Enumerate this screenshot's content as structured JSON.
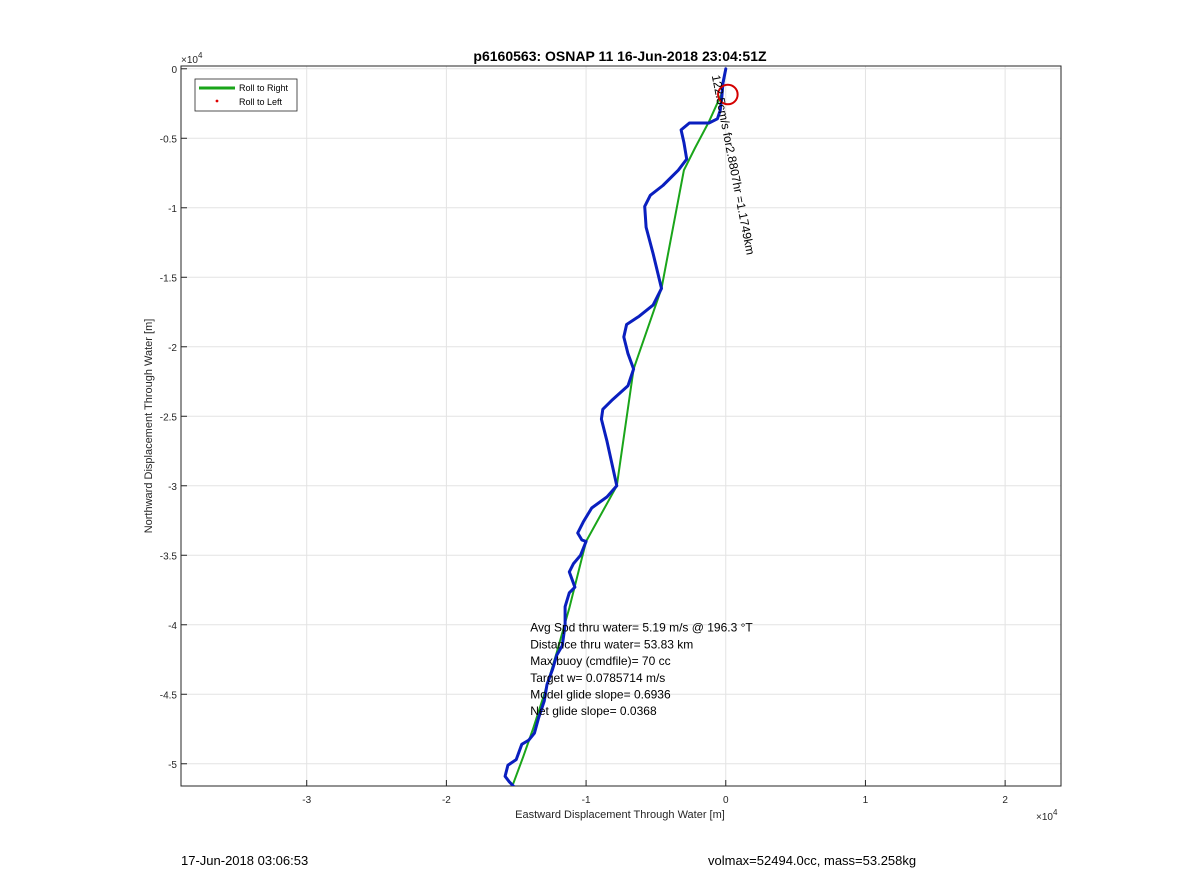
{
  "chart_data": {
    "type": "line",
    "title": "p6160563: OSNAP 11 16-Jun-2018 23:04:51Z",
    "xlabel": "Eastward Displacement Through Water [m]",
    "ylabel": "Northward Displacement Through Water [m]",
    "x_exponent_label": "×10",
    "x_exponent_power": "4",
    "y_exponent_label": "×10",
    "y_exponent_power": "4",
    "xlim": [
      -39000,
      24000
    ],
    "ylim": [
      -51600,
      200
    ],
    "x_ticks": [
      -30000,
      -20000,
      -10000,
      0,
      10000,
      20000
    ],
    "x_tick_labels": [
      "-3",
      "-2",
      "-1",
      "0",
      "1",
      "2"
    ],
    "y_ticks": [
      0,
      -5000,
      -10000,
      -15000,
      -20000,
      -25000,
      -30000,
      -35000,
      -40000,
      -45000,
      -50000
    ],
    "y_tick_labels": [
      "0",
      "-0.5",
      "-1",
      "-1.5",
      "-2",
      "-2.5",
      "-3",
      "-3.5",
      "-4",
      "-4.5",
      "-5"
    ],
    "grid": true,
    "legend_placement": "top-left",
    "legend": [
      {
        "label": "Roll to Right",
        "color": "#1aa51a",
        "style": "line"
      },
      {
        "label": "Roll to Left",
        "color": "#e00000",
        "style": "dot"
      }
    ],
    "series": [
      {
        "name": "Roll to Right",
        "color": "#1aa51a",
        "x": [
          0,
          -300,
          -1200,
          -2200,
          -3000,
          -4600,
          -6600,
          -7800,
          -10000,
          -11200,
          -12100,
          -13000,
          -13800,
          -14500,
          -15200
        ],
        "y": [
          0,
          -1800,
          -3800,
          -5700,
          -7300,
          -15800,
          -21600,
          -30000,
          -34000,
          -38800,
          -42000,
          -45000,
          -47500,
          -49500,
          -51400
        ]
      },
      {
        "name": "track",
        "color": "#0a1fbf",
        "x": [
          0,
          -200,
          -300,
          -400,
          -600,
          -1200,
          -2600,
          -3200,
          -3000,
          -2800,
          -3400,
          -4500,
          -5400,
          -5800,
          -5700,
          -5200,
          -4600,
          -5200,
          -6200,
          -7100,
          -7300,
          -7000,
          -6600,
          -7000,
          -8100,
          -8800,
          -8900,
          -8500,
          -7800,
          -8500,
          -9600,
          -10200,
          -10600,
          -10300,
          -10000,
          -10400,
          -10900,
          -11200,
          -10800,
          -11200,
          -11500,
          -11500,
          -11700,
          -12100,
          -12400,
          -12800,
          -13000,
          -13400,
          -13700,
          -14100,
          -14600,
          -15000,
          -15600,
          -15800,
          -15500,
          -15200
        ],
        "y": [
          0,
          -1000,
          -2200,
          -3000,
          -3600,
          -3900,
          -3900,
          -4400,
          -5300,
          -6500,
          -7300,
          -8400,
          -9100,
          -9900,
          -11400,
          -13300,
          -15800,
          -17000,
          -17800,
          -18400,
          -19300,
          -20500,
          -21600,
          -22800,
          -23800,
          -24500,
          -25200,
          -26800,
          -30000,
          -30800,
          -31600,
          -32600,
          -33400,
          -33900,
          -34000,
          -35000,
          -35600,
          -36200,
          -37300,
          -37700,
          -38700,
          -40000,
          -41500,
          -42200,
          -43200,
          -44300,
          -45500,
          -46700,
          -47800,
          -48300,
          -48600,
          -49700,
          -50100,
          -50900,
          -51300,
          -51600
        ]
      },
      {
        "name": "Roll to Left",
        "color": "#d40000",
        "type": "circle",
        "x": [
          150
        ],
        "y": [
          -1850
        ],
        "r_m": 700
      }
    ],
    "annotations": [
      {
        "text": "Avg Spd thru water=  5.19 m/s @ 196.3 °T",
        "x": -14000,
        "y": -40500
      },
      {
        "text": "Distance thru water= 53.83 km",
        "x": -14000,
        "y": -41700
      },
      {
        "text": "Max buoy (cmdfile)= 70 cc",
        "x": -14000,
        "y": -42900
      },
      {
        "text": "Target w= 0.0785714 m/s",
        "x": -14000,
        "y": -44100
      },
      {
        "text": "Model glide slope= 0.6936",
        "x": -14000,
        "y": -45300
      },
      {
        "text": "Net glide slope= 0.0368",
        "x": -14000,
        "y": -46500
      },
      {
        "text": "122.5cm/s for2.8807hr =1.1749km",
        "x": -1000,
        "y": -500,
        "rotation_deg": 79
      }
    ]
  },
  "footer": {
    "left": "17-Jun-2018 03:06:53",
    "right": "volmax=52494.0cc, mass=53.258kg"
  }
}
